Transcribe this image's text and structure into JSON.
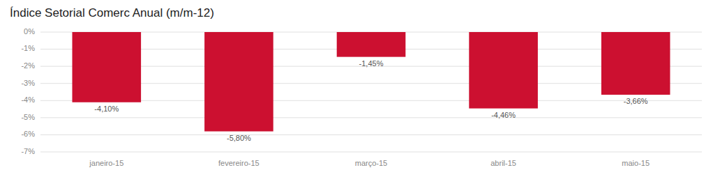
{
  "chart_data": {
    "type": "bar",
    "title": "Índice Setorial Comerc Anual  (m/m-12)",
    "categories": [
      "janeiro-15",
      "fevereiro-15",
      "março-15",
      "abril-15",
      "maio-15"
    ],
    "values": [
      -4.1,
      -5.8,
      -1.45,
      -4.46,
      -3.66
    ],
    "value_labels": [
      "-4,10%",
      "-5,80%",
      "-1,45%",
      "-4,46%",
      "-3,66%"
    ],
    "data_labels": true,
    "color": "#cc1030",
    "ylim": [
      -7,
      0
    ],
    "yticks": [
      {
        "value": 0,
        "label": "0%"
      },
      {
        "value": -1,
        "label": "-1%"
      },
      {
        "value": -2,
        "label": "-2%"
      },
      {
        "value": -3,
        "label": "-3%"
      },
      {
        "value": -4,
        "label": "-4%"
      },
      {
        "value": -5,
        "label": "-5%"
      },
      {
        "value": -6,
        "label": "-6%"
      },
      {
        "value": -7,
        "label": "-7%"
      }
    ],
    "grid": true
  }
}
